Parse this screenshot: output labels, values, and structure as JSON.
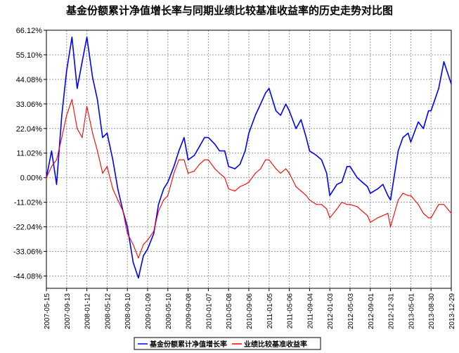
{
  "chart_data": {
    "type": "line",
    "title": "基金份额累计净值增长率与同期业绩比较基准收益率的历史走势对比图",
    "xlabel": "",
    "ylabel": "",
    "ylim": [
      -49.6,
      66.12
    ],
    "grid": true,
    "legend_position": "bottom",
    "y_tick_labels": [
      "66.12%",
      "55.10%",
      "44.08%",
      "33.06%",
      "22.04%",
      "11.02%",
      "0.00%",
      "-11.02%",
      "-22.04%",
      "-33.06%",
      "-44.08%"
    ],
    "y_tick_values": [
      66.12,
      55.1,
      44.08,
      33.06,
      22.04,
      11.02,
      0,
      -11.02,
      -22.04,
      -33.06,
      -44.08
    ],
    "x_tick_labels": [
      "2007-05-15",
      "2007-09-13",
      "2008-01-12",
      "2008-05-12",
      "2008-09-10",
      "2009-01-09",
      "2009-05-10",
      "2009-09-08",
      "2010-01-07",
      "2010-05-08",
      "2010-09-06",
      "2011-01-05",
      "2011-05-06",
      "2011-09-04",
      "2012-01-03",
      "2012-05-03",
      "2012-09-01",
      "2012-12-31",
      "2013-05-01",
      "2013-08-30",
      "2013-12-29"
    ],
    "x": [
      "2007-05-15",
      "2007-06-15",
      "2007-07-15",
      "2007-08-15",
      "2007-09-13",
      "2007-10-15",
      "2007-11-15",
      "2007-12-15",
      "2008-01-12",
      "2008-02-15",
      "2008-03-15",
      "2008-04-15",
      "2008-05-12",
      "2008-06-15",
      "2008-07-15",
      "2008-08-15",
      "2008-09-10",
      "2008-10-15",
      "2008-11-15",
      "2008-12-15",
      "2009-01-09",
      "2009-02-15",
      "2009-03-15",
      "2009-04-15",
      "2009-05-10",
      "2009-06-15",
      "2009-07-15",
      "2009-08-15",
      "2009-09-08",
      "2009-10-15",
      "2009-11-15",
      "2009-12-15",
      "2010-01-07",
      "2010-02-15",
      "2010-03-15",
      "2010-04-15",
      "2010-05-08",
      "2010-06-15",
      "2010-07-15",
      "2010-08-15",
      "2010-09-06",
      "2010-10-15",
      "2010-11-15",
      "2010-12-15",
      "2011-01-05",
      "2011-02-15",
      "2011-03-15",
      "2011-04-15",
      "2011-05-06",
      "2011-06-15",
      "2011-07-15",
      "2011-08-15",
      "2011-09-04",
      "2011-10-15",
      "2011-11-15",
      "2011-12-15",
      "2012-01-03",
      "2012-02-15",
      "2012-03-15",
      "2012-04-15",
      "2012-05-03",
      "2012-06-15",
      "2012-07-15",
      "2012-08-15",
      "2012-09-01",
      "2012-10-15",
      "2012-11-15",
      "2012-12-15",
      "2012-12-31",
      "2013-02-15",
      "2013-03-15",
      "2013-04-15",
      "2013-05-01",
      "2013-06-15",
      "2013-07-15",
      "2013-08-15",
      "2013-08-30",
      "2013-10-15",
      "2013-11-15",
      "2013-12-29"
    ],
    "series": [
      {
        "name": "基金份额累计净值增长率",
        "color": "#0000ff",
        "values": [
          0,
          12,
          -3,
          28,
          48,
          63,
          40,
          52,
          63,
          45,
          35,
          18,
          20,
          8,
          -5,
          -15,
          -22,
          -38,
          -45,
          -35,
          -32,
          -25,
          -12,
          -5,
          -2,
          5,
          12,
          18,
          8,
          10,
          14,
          18,
          18,
          15,
          12,
          12,
          5,
          4,
          6,
          12,
          20,
          28,
          33,
          38,
          40,
          30,
          28,
          33,
          30,
          22,
          26,
          18,
          12,
          10,
          8,
          2,
          -8,
          -3,
          -2,
          5,
          5,
          0,
          -2,
          -4,
          -7,
          -5,
          -3,
          -8,
          -10,
          12,
          18,
          20,
          16,
          25,
          22,
          30,
          30,
          40,
          52,
          42
        ]
      },
      {
        "name": "业绩比较基准收益率",
        "color": "#ff0000",
        "values": [
          0,
          5,
          8,
          18,
          28,
          35,
          22,
          18,
          32,
          20,
          12,
          2,
          5,
          -5,
          -10,
          -15,
          -25,
          -30,
          -36,
          -30,
          -28,
          -24,
          -15,
          -10,
          -8,
          2,
          8,
          8,
          2,
          3,
          6,
          8,
          8,
          4,
          2,
          0,
          -5,
          -6,
          -4,
          -3,
          -2,
          2,
          4,
          8,
          8,
          4,
          2,
          4,
          2,
          -4,
          -6,
          -8,
          -10,
          -12,
          -12,
          -14,
          -18,
          -14,
          -11,
          -12,
          -12,
          -13,
          -15,
          -17,
          -20,
          -18,
          -17,
          -16,
          -22,
          -10,
          -7,
          -8,
          -8,
          -12,
          -16,
          -18,
          -18,
          -12,
          -12,
          -16
        ]
      }
    ]
  }
}
